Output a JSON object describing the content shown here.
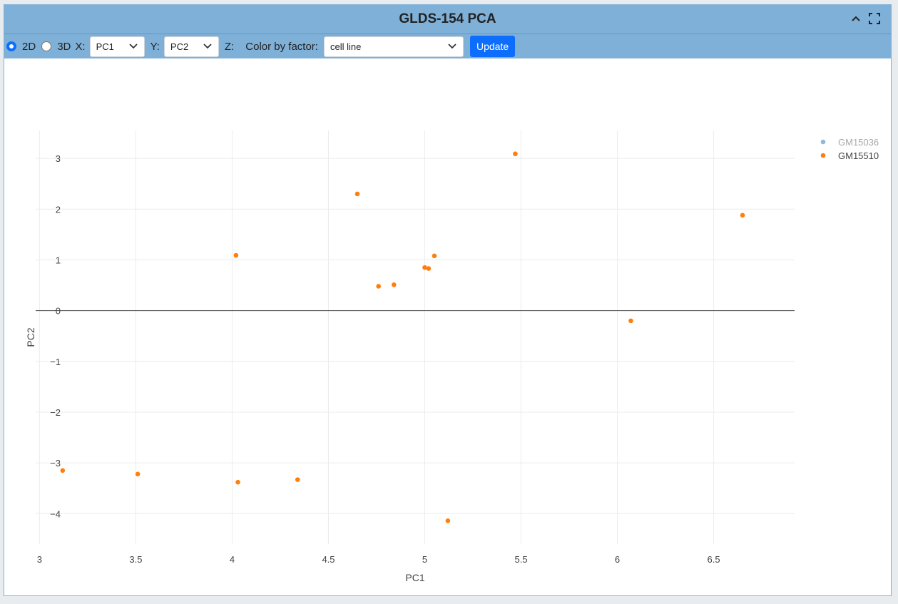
{
  "panel": {
    "title": "GLDS-154 PCA"
  },
  "toolbar": {
    "option_2d": "2D",
    "option_3d": "3D",
    "selected_mode": "2D",
    "x_label": "X:",
    "x_value": "PC1",
    "y_label": "Y:",
    "y_value": "PC2",
    "z_label": "Z:",
    "color_label": "Color by factor:",
    "color_value": "cell line",
    "update_label": "Update"
  },
  "icons": {
    "collapse": "chevron-up-icon",
    "fullscreen": "expand-icon",
    "dropdown": "chevron-down-icon"
  },
  "chart_data": {
    "type": "scatter",
    "title": "",
    "xlabel": "PC1",
    "ylabel": "PC2",
    "xlim": [
      2.98,
      6.92
    ],
    "ylim": [
      -4.6,
      3.55
    ],
    "xticks": [
      3,
      3.5,
      4,
      4.5,
      5,
      5.5,
      6,
      6.5
    ],
    "xtick_labels": [
      "3",
      "3.5",
      "4",
      "4.5",
      "5",
      "5.5",
      "6",
      "6.5"
    ],
    "yticks": [
      3,
      2,
      1,
      0,
      -1,
      -2,
      -3,
      -4
    ],
    "ytick_labels": [
      "3",
      "2",
      "1",
      "0",
      "−1",
      "−2",
      "−3",
      "−4"
    ],
    "grid": true,
    "legend_position": "top-right",
    "series": [
      {
        "name": "GM15036",
        "color": "#8fb8dc",
        "hidden": true,
        "points": []
      },
      {
        "name": "GM15510",
        "color": "#ff7f0e",
        "hidden": false,
        "points": [
          {
            "x": 5.47,
            "y": 3.09
          },
          {
            "x": 4.65,
            "y": 2.3
          },
          {
            "x": 6.65,
            "y": 1.88
          },
          {
            "x": 4.02,
            "y": 1.09
          },
          {
            "x": 5.05,
            "y": 1.08
          },
          {
            "x": 5.0,
            "y": 0.85
          },
          {
            "x": 5.02,
            "y": 0.83
          },
          {
            "x": 4.84,
            "y": 0.51
          },
          {
            "x": 4.76,
            "y": 0.48
          },
          {
            "x": 6.07,
            "y": -0.2
          },
          {
            "x": 3.12,
            "y": -3.15
          },
          {
            "x": 3.51,
            "y": -3.22
          },
          {
            "x": 4.03,
            "y": -3.38
          },
          {
            "x": 4.34,
            "y": -3.33
          },
          {
            "x": 5.12,
            "y": -4.14
          }
        ]
      }
    ]
  }
}
